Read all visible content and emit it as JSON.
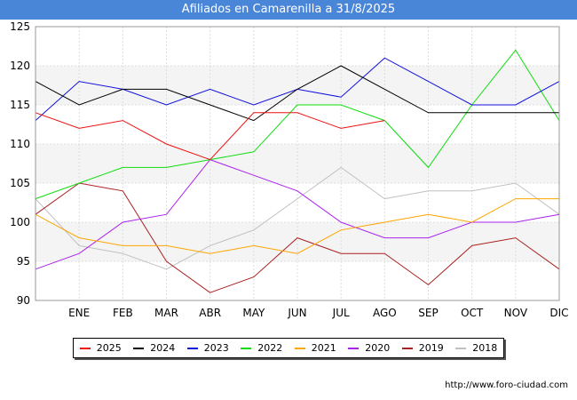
{
  "chart_data": {
    "type": "line",
    "title": "Afiliados en Camarenilla a 31/8/2025",
    "categories": [
      "",
      "ENE",
      "FEB",
      "MAR",
      "ABR",
      "MAY",
      "JUN",
      "JUL",
      "AGO",
      "SEP",
      "OCT",
      "NOV",
      "DIC"
    ],
    "ylim": [
      90,
      125
    ],
    "yticks": [
      90,
      95,
      100,
      105,
      110,
      115,
      120,
      125
    ],
    "grid": true,
    "legend_position": "bottom",
    "series": [
      {
        "name": "2025",
        "color": "#ee1111",
        "values": [
          114,
          112,
          113,
          110,
          108,
          114,
          114,
          112,
          113,
          null,
          null,
          null,
          null
        ]
      },
      {
        "name": "2024",
        "color": "#000000",
        "values": [
          118,
          115,
          117,
          117,
          115,
          113,
          117,
          120,
          117,
          114,
          114,
          114,
          114
        ]
      },
      {
        "name": "2023",
        "color": "#1111dd",
        "values": [
          113,
          118,
          117,
          115,
          117,
          115,
          117,
          116,
          121,
          118,
          115,
          115,
          118
        ]
      },
      {
        "name": "2022",
        "color": "#11dd11",
        "values": [
          103,
          105,
          107,
          107,
          108,
          109,
          115,
          115,
          113,
          107,
          115,
          122,
          113
        ]
      },
      {
        "name": "2021",
        "color": "#ffa500",
        "values": [
          101,
          98,
          97,
          97,
          96,
          97,
          96,
          99,
          100,
          101,
          100,
          103,
          103
        ]
      },
      {
        "name": "2020",
        "color": "#aa22ee",
        "values": [
          94,
          96,
          100,
          101,
          108,
          106,
          104,
          100,
          98,
          98,
          100,
          100,
          101
        ]
      },
      {
        "name": "2019",
        "color": "#aa2222",
        "values": [
          101,
          105,
          104,
          95,
          91,
          93,
          98,
          96,
          96,
          92,
          97,
          98,
          94
        ]
      },
      {
        "name": "2018",
        "color": "#c0c0c0",
        "values": [
          103,
          97,
          96,
          94,
          97,
          99,
          103,
          107,
          103,
          104,
          104,
          105,
          101
        ]
      }
    ]
  },
  "source_text": "http://www.foro-ciudad.com"
}
